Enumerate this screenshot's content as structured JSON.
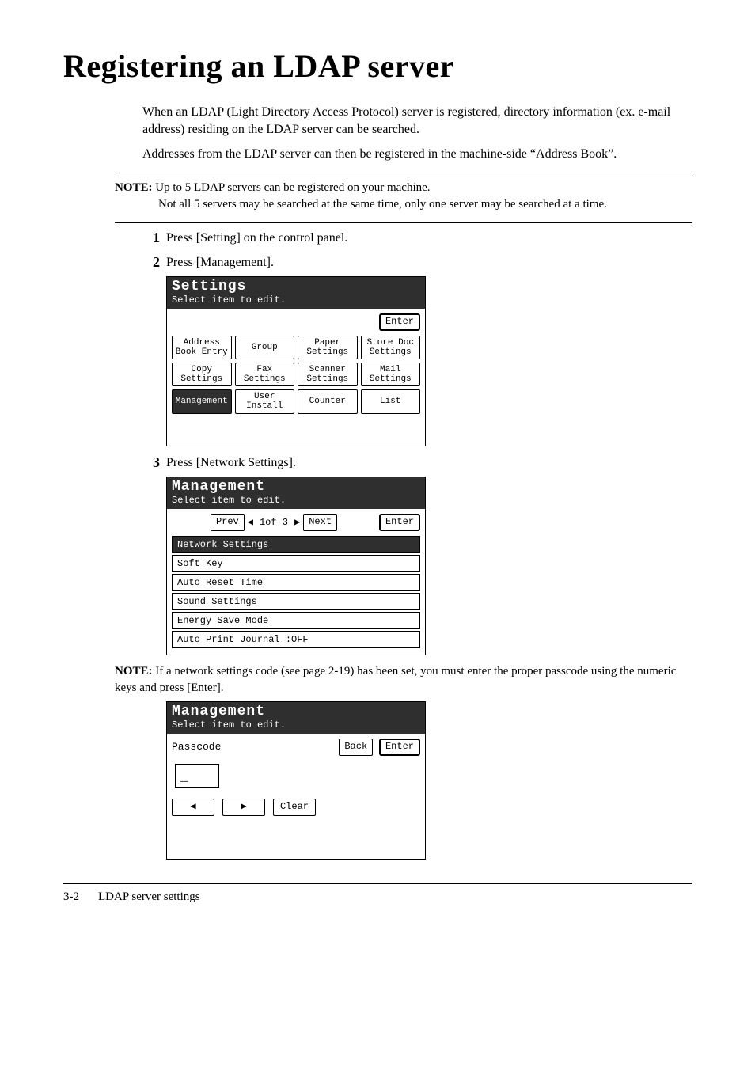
{
  "title": "Registering an LDAP server",
  "intro1": "When an LDAP (Light Directory Access Protocol) server is registered, directory information (ex. e-mail address) residing on the LDAP server can be searched.",
  "intro2": "Addresses from the LDAP server can then be registered in the machine-side “Address Book”.",
  "note1_label": "NOTE:",
  "note1_line1": "Up to 5 LDAP servers can be registered on your machine.",
  "note1_line2": "Not all 5 servers may be searched at the same time, only one server may be searched at a time.",
  "step1_num": "1",
  "step1_text": "Press [Setting] on the control panel.",
  "step2_num": "2",
  "step2_text": "Press [Management].",
  "lcd1": {
    "title": "Settings",
    "subtitle": "Select item to edit.",
    "enter": "Enter",
    "grid": [
      {
        "label": "Address\nBook Entry",
        "sel": false
      },
      {
        "label": "Group",
        "sel": false
      },
      {
        "label": "Paper\nSettings",
        "sel": false
      },
      {
        "label": "Store Doc\nSettings",
        "sel": false
      },
      {
        "label": "Copy\nSettings",
        "sel": false
      },
      {
        "label": "Fax\nSettings",
        "sel": false
      },
      {
        "label": "Scanner\nSettings",
        "sel": false
      },
      {
        "label": "Mail\nSettings",
        "sel": false
      },
      {
        "label": "Management",
        "sel": true
      },
      {
        "label": "User\nInstall",
        "sel": false
      },
      {
        "label": "Counter",
        "sel": false
      },
      {
        "label": "List",
        "sel": false
      }
    ]
  },
  "step3_num": "3",
  "step3_text": "Press [Network Settings].",
  "lcd2": {
    "title": "Management",
    "subtitle": "Select item to edit.",
    "prev": "Prev",
    "next": "Next",
    "page_indicator": "1of  3",
    "enter": "Enter",
    "rows": [
      {
        "label": "Network Settings",
        "sel": true
      },
      {
        "label": "Soft Key",
        "sel": false
      },
      {
        "label": "Auto Reset Time",
        "sel": false
      },
      {
        "label": "Sound Settings",
        "sel": false
      },
      {
        "label": "Energy Save Mode",
        "sel": false
      },
      {
        "label": "Auto Print Journal   :OFF",
        "sel": false
      }
    ]
  },
  "note2_label": "NOTE:",
  "note2_text": "If a network settings code (see page 2-19) has been set, you must enter the proper passcode using the numeric keys and press [Enter].",
  "lcd3": {
    "title": "Management",
    "subtitle": "Select item to edit.",
    "passcode_label": "Passcode",
    "back": "Back",
    "enter": "Enter",
    "cursor": "_",
    "left": "◀",
    "right": "▶",
    "clear": "Clear"
  },
  "footer_page": "3-2",
  "footer_title": "LDAP server settings"
}
